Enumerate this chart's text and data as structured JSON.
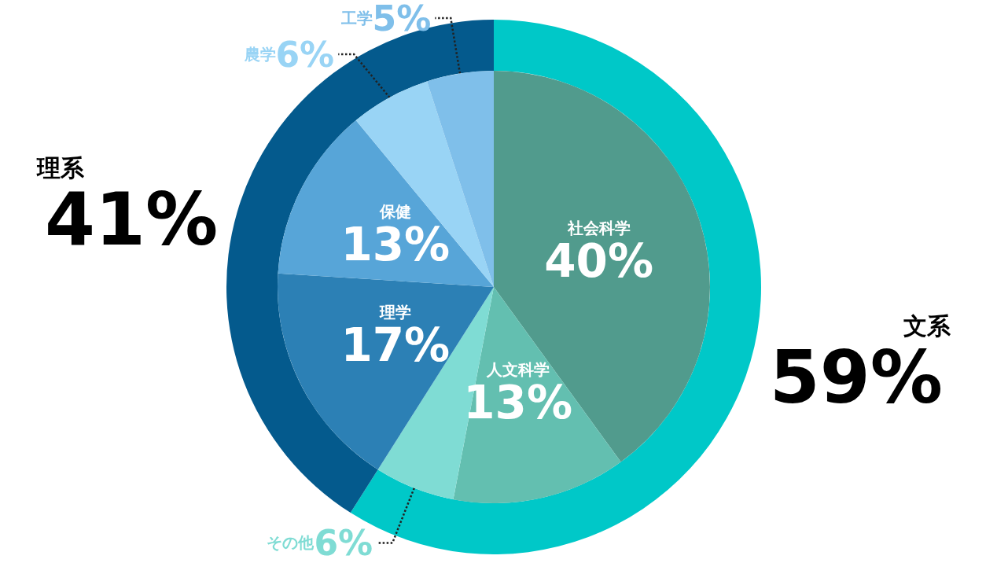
{
  "chart_data": [
    {
      "type": "pie",
      "categories": [
        "社会科学",
        "人文科学",
        "その他",
        "理学",
        "保健",
        "農学",
        "工学"
      ],
      "values": [
        40,
        13,
        6,
        17,
        13,
        6,
        5
      ],
      "value_labels": [
        "40%",
        "13%",
        "6%",
        "17%",
        "13%",
        "6%",
        "5%"
      ],
      "colors": [
        "#519b8d",
        "#63bfb0",
        "#7fdcd4",
        "#2c80b5",
        "#57a5d8",
        "#99d4f5",
        "#7fbfea"
      ]
    },
    {
      "type": "donut",
      "categories": [
        "文系",
        "理系"
      ],
      "values": [
        59,
        41
      ],
      "value_labels": [
        "59%",
        "41%"
      ],
      "colors": [
        "#00c8c8",
        "#045a8d"
      ]
    }
  ]
}
